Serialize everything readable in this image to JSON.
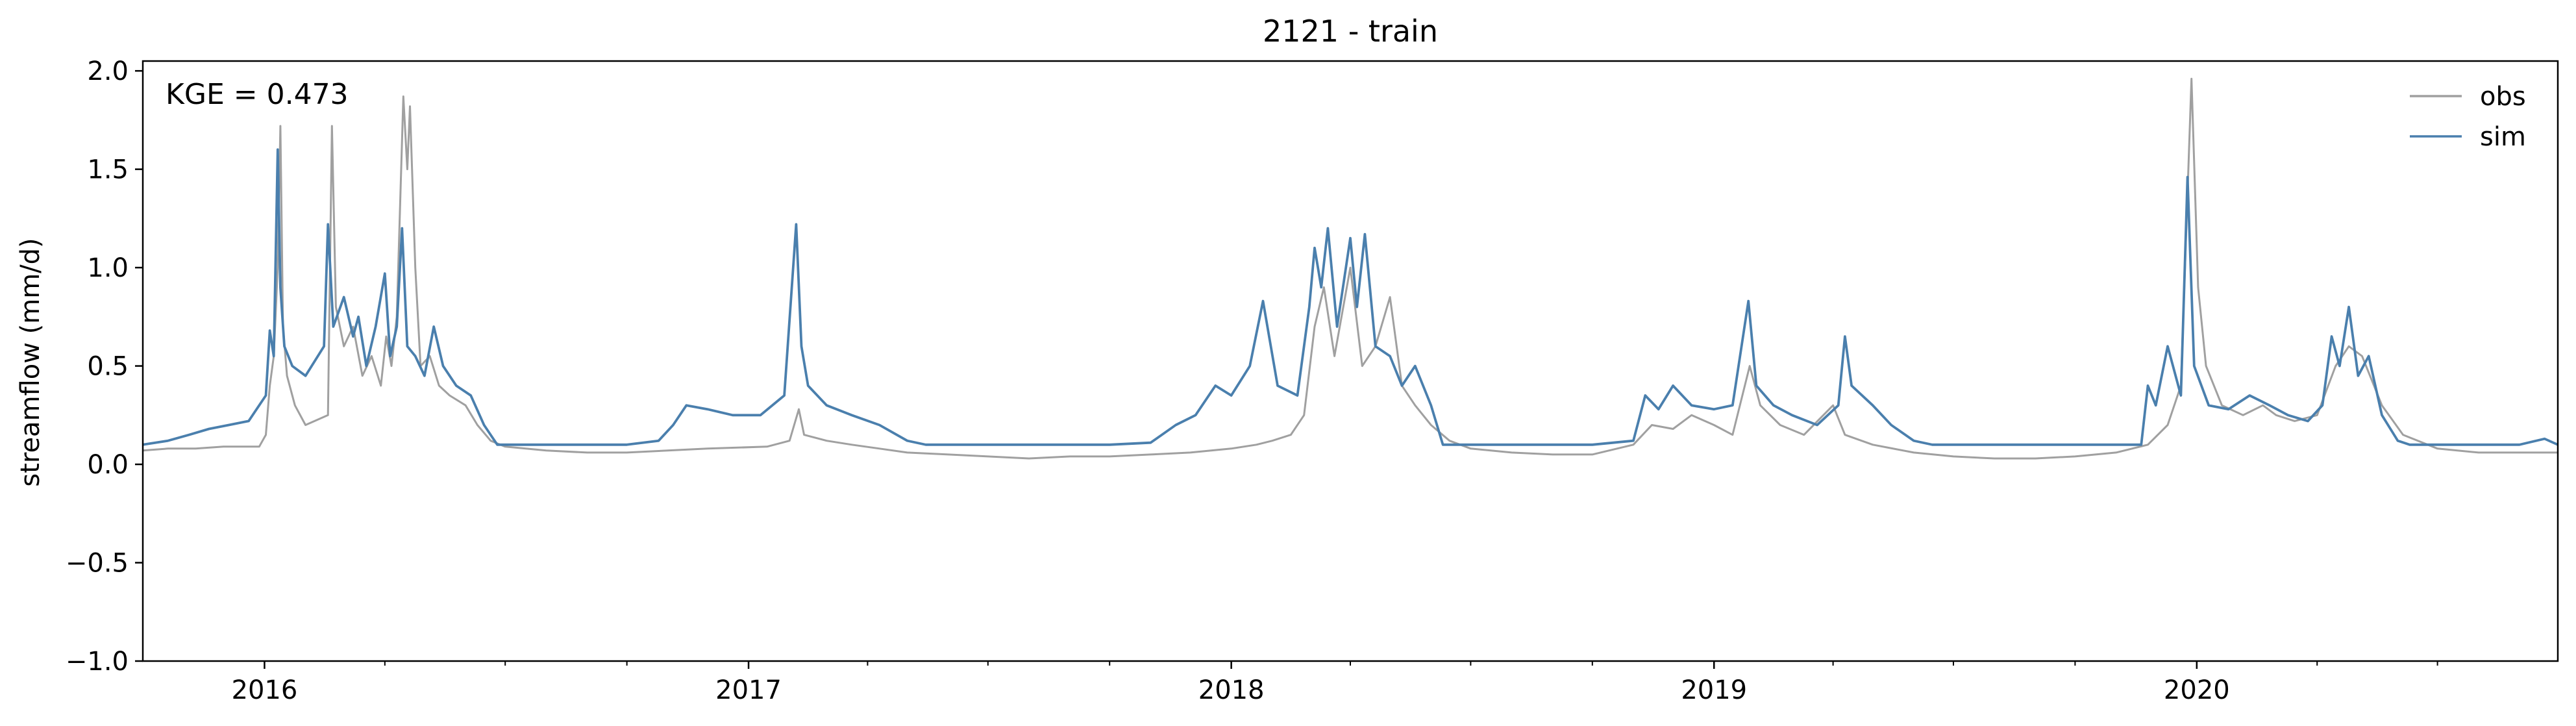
{
  "chart_data": {
    "type": "line",
    "title": "2121 - train",
    "ylabel": "streamflow (mm/d)",
    "xlabel": "",
    "annotation": "KGE = 0.473",
    "xlim": [
      "2015-10-01",
      "2020-09-30"
    ],
    "ylim": [
      -1.0,
      2.05
    ],
    "grid": false,
    "legend_position": "top-right",
    "x_ticks": [
      {
        "date": "2016-01-01",
        "label": "2016"
      },
      {
        "date": "2017-01-01",
        "label": "2017"
      },
      {
        "date": "2018-01-01",
        "label": "2018"
      },
      {
        "date": "2019-01-01",
        "label": "2019"
      },
      {
        "date": "2020-01-01",
        "label": "2020"
      }
    ],
    "minor_x_ticks": [
      "2016-04-01",
      "2016-07-01",
      "2016-10-01",
      "2017-04-01",
      "2017-07-01",
      "2017-10-01",
      "2018-04-01",
      "2018-07-01",
      "2018-10-01",
      "2019-04-01",
      "2019-07-01",
      "2019-10-01",
      "2020-04-01",
      "2020-07-01"
    ],
    "y_ticks": [
      {
        "value": -1.0,
        "label": "−1.0"
      },
      {
        "value": -0.5,
        "label": "−0.5"
      },
      {
        "value": 0.0,
        "label": "0.0"
      },
      {
        "value": 0.5,
        "label": "0.5"
      },
      {
        "value": 1.0,
        "label": "1.0"
      },
      {
        "value": 1.5,
        "label": "1.5"
      },
      {
        "value": 2.0,
        "label": "2.0"
      }
    ],
    "series": [
      {
        "name": "obs",
        "color": "#a0a0a0",
        "points": [
          [
            "2015-10-01",
            0.07
          ],
          [
            "2015-10-20",
            0.08
          ],
          [
            "2015-11-10",
            0.08
          ],
          [
            "2015-12-01",
            0.09
          ],
          [
            "2015-12-28",
            0.09
          ],
          [
            "2016-01-02",
            0.15
          ],
          [
            "2016-01-05",
            0.4
          ],
          [
            "2016-01-08",
            0.55
          ],
          [
            "2016-01-11",
            1.0
          ],
          [
            "2016-01-13",
            1.72
          ],
          [
            "2016-01-15",
            0.7
          ],
          [
            "2016-01-18",
            0.45
          ],
          [
            "2016-01-24",
            0.3
          ],
          [
            "2016-02-01",
            0.2
          ],
          [
            "2016-02-18",
            0.25
          ],
          [
            "2016-02-21",
            1.72
          ],
          [
            "2016-02-24",
            0.8
          ],
          [
            "2016-03-01",
            0.6
          ],
          [
            "2016-03-08",
            0.7
          ],
          [
            "2016-03-15",
            0.45
          ],
          [
            "2016-03-22",
            0.55
          ],
          [
            "2016-03-29",
            0.4
          ],
          [
            "2016-04-02",
            0.65
          ],
          [
            "2016-04-06",
            0.5
          ],
          [
            "2016-04-10",
            0.75
          ],
          [
            "2016-04-15",
            1.87
          ],
          [
            "2016-04-18",
            1.5
          ],
          [
            "2016-04-20",
            1.82
          ],
          [
            "2016-04-24",
            1.0
          ],
          [
            "2016-04-28",
            0.5
          ],
          [
            "2016-05-05",
            0.55
          ],
          [
            "2016-05-12",
            0.4
          ],
          [
            "2016-05-20",
            0.35
          ],
          [
            "2016-06-01",
            0.3
          ],
          [
            "2016-06-10",
            0.2
          ],
          [
            "2016-06-20",
            0.12
          ],
          [
            "2016-07-01",
            0.09
          ],
          [
            "2016-08-01",
            0.07
          ],
          [
            "2016-09-01",
            0.06
          ],
          [
            "2016-10-01",
            0.06
          ],
          [
            "2016-11-01",
            0.07
          ],
          [
            "2016-12-01",
            0.08
          ],
          [
            "2017-01-15",
            0.09
          ],
          [
            "2017-02-01",
            0.12
          ],
          [
            "2017-02-08",
            0.28
          ],
          [
            "2017-02-12",
            0.15
          ],
          [
            "2017-03-01",
            0.12
          ],
          [
            "2017-03-20",
            0.1
          ],
          [
            "2017-04-10",
            0.08
          ],
          [
            "2017-05-01",
            0.06
          ],
          [
            "2017-06-01",
            0.05
          ],
          [
            "2017-07-01",
            0.04
          ],
          [
            "2017-08-01",
            0.03
          ],
          [
            "2017-09-01",
            0.04
          ],
          [
            "2017-10-01",
            0.04
          ],
          [
            "2017-11-01",
            0.05
          ],
          [
            "2017-12-01",
            0.06
          ],
          [
            "2018-01-01",
            0.08
          ],
          [
            "2018-01-20",
            0.1
          ],
          [
            "2018-02-01",
            0.12
          ],
          [
            "2018-02-15",
            0.15
          ],
          [
            "2018-02-25",
            0.25
          ],
          [
            "2018-03-05",
            0.7
          ],
          [
            "2018-03-12",
            0.9
          ],
          [
            "2018-03-20",
            0.55
          ],
          [
            "2018-04-01",
            1.0
          ],
          [
            "2018-04-10",
            0.5
          ],
          [
            "2018-04-20",
            0.6
          ],
          [
            "2018-05-01",
            0.85
          ],
          [
            "2018-05-10",
            0.4
          ],
          [
            "2018-05-20",
            0.3
          ],
          [
            "2018-06-01",
            0.2
          ],
          [
            "2018-06-15",
            0.12
          ],
          [
            "2018-07-01",
            0.08
          ],
          [
            "2018-08-01",
            0.06
          ],
          [
            "2018-09-01",
            0.05
          ],
          [
            "2018-10-01",
            0.05
          ],
          [
            "2018-11-01",
            0.1
          ],
          [
            "2018-11-15",
            0.2
          ],
          [
            "2018-12-01",
            0.18
          ],
          [
            "2018-12-15",
            0.25
          ],
          [
            "2019-01-01",
            0.2
          ],
          [
            "2019-01-15",
            0.15
          ],
          [
            "2019-01-28",
            0.5
          ],
          [
            "2019-02-05",
            0.3
          ],
          [
            "2019-02-20",
            0.2
          ],
          [
            "2019-03-10",
            0.15
          ],
          [
            "2019-04-01",
            0.3
          ],
          [
            "2019-04-10",
            0.15
          ],
          [
            "2019-05-01",
            0.1
          ],
          [
            "2019-06-01",
            0.06
          ],
          [
            "2019-07-01",
            0.04
          ],
          [
            "2019-08-01",
            0.03
          ],
          [
            "2019-09-01",
            0.03
          ],
          [
            "2019-10-01",
            0.04
          ],
          [
            "2019-11-01",
            0.06
          ],
          [
            "2019-11-25",
            0.1
          ],
          [
            "2019-12-10",
            0.2
          ],
          [
            "2019-12-20",
            0.4
          ],
          [
            "2019-12-28",
            1.96
          ],
          [
            "2020-01-02",
            0.9
          ],
          [
            "2020-01-08",
            0.5
          ],
          [
            "2020-01-20",
            0.3
          ],
          [
            "2020-02-05",
            0.25
          ],
          [
            "2020-02-20",
            0.3
          ],
          [
            "2020-03-01",
            0.25
          ],
          [
            "2020-03-15",
            0.22
          ],
          [
            "2020-04-01",
            0.25
          ],
          [
            "2020-04-15",
            0.5
          ],
          [
            "2020-04-25",
            0.6
          ],
          [
            "2020-05-05",
            0.55
          ],
          [
            "2020-05-20",
            0.3
          ],
          [
            "2020-06-05",
            0.15
          ],
          [
            "2020-07-01",
            0.08
          ],
          [
            "2020-08-01",
            0.06
          ],
          [
            "2020-09-30",
            0.06
          ]
        ]
      },
      {
        "name": "sim",
        "color": "#4a7fad",
        "points": [
          [
            "2015-10-01",
            0.1
          ],
          [
            "2015-10-20",
            0.12
          ],
          [
            "2015-11-05",
            0.15
          ],
          [
            "2015-11-20",
            0.18
          ],
          [
            "2015-12-05",
            0.2
          ],
          [
            "2015-12-20",
            0.22
          ],
          [
            "2016-01-02",
            0.35
          ],
          [
            "2016-01-05",
            0.68
          ],
          [
            "2016-01-08",
            0.55
          ],
          [
            "2016-01-11",
            1.6
          ],
          [
            "2016-01-13",
            0.9
          ],
          [
            "2016-01-16",
            0.6
          ],
          [
            "2016-01-22",
            0.5
          ],
          [
            "2016-02-01",
            0.45
          ],
          [
            "2016-02-15",
            0.6
          ],
          [
            "2016-02-18",
            1.22
          ],
          [
            "2016-02-22",
            0.7
          ],
          [
            "2016-03-01",
            0.85
          ],
          [
            "2016-03-08",
            0.65
          ],
          [
            "2016-03-12",
            0.75
          ],
          [
            "2016-03-18",
            0.5
          ],
          [
            "2016-03-25",
            0.7
          ],
          [
            "2016-04-01",
            0.97
          ],
          [
            "2016-04-05",
            0.55
          ],
          [
            "2016-04-10",
            0.7
          ],
          [
            "2016-04-14",
            1.2
          ],
          [
            "2016-04-18",
            0.6
          ],
          [
            "2016-04-24",
            0.55
          ],
          [
            "2016-05-01",
            0.45
          ],
          [
            "2016-05-08",
            0.7
          ],
          [
            "2016-05-15",
            0.5
          ],
          [
            "2016-05-25",
            0.4
          ],
          [
            "2016-06-05",
            0.35
          ],
          [
            "2016-06-15",
            0.2
          ],
          [
            "2016-06-25",
            0.1
          ],
          [
            "2016-07-01",
            0.1
          ],
          [
            "2016-08-01",
            0.1
          ],
          [
            "2016-09-01",
            0.1
          ],
          [
            "2016-10-01",
            0.1
          ],
          [
            "2016-10-25",
            0.12
          ],
          [
            "2016-11-05",
            0.2
          ],
          [
            "2016-11-15",
            0.3
          ],
          [
            "2016-12-01",
            0.28
          ],
          [
            "2016-12-20",
            0.25
          ],
          [
            "2017-01-10",
            0.25
          ],
          [
            "2017-01-28",
            0.35
          ],
          [
            "2017-02-06",
            1.22
          ],
          [
            "2017-02-10",
            0.6
          ],
          [
            "2017-02-15",
            0.4
          ],
          [
            "2017-03-01",
            0.3
          ],
          [
            "2017-03-20",
            0.25
          ],
          [
            "2017-04-10",
            0.2
          ],
          [
            "2017-05-01",
            0.12
          ],
          [
            "2017-05-15",
            0.1
          ],
          [
            "2017-06-01",
            0.1
          ],
          [
            "2017-07-01",
            0.1
          ],
          [
            "2017-08-01",
            0.1
          ],
          [
            "2017-09-01",
            0.1
          ],
          [
            "2017-10-01",
            0.1
          ],
          [
            "2017-11-01",
            0.11
          ],
          [
            "2017-11-20",
            0.2
          ],
          [
            "2017-12-05",
            0.25
          ],
          [
            "2017-12-20",
            0.4
          ],
          [
            "2018-01-01",
            0.35
          ],
          [
            "2018-01-15",
            0.5
          ],
          [
            "2018-01-25",
            0.83
          ],
          [
            "2018-02-05",
            0.4
          ],
          [
            "2018-02-20",
            0.35
          ],
          [
            "2018-03-01",
            0.8
          ],
          [
            "2018-03-05",
            1.1
          ],
          [
            "2018-03-10",
            0.9
          ],
          [
            "2018-03-15",
            1.2
          ],
          [
            "2018-03-22",
            0.7
          ],
          [
            "2018-04-01",
            1.15
          ],
          [
            "2018-04-06",
            0.8
          ],
          [
            "2018-04-12",
            1.17
          ],
          [
            "2018-04-20",
            0.6
          ],
          [
            "2018-05-01",
            0.55
          ],
          [
            "2018-05-10",
            0.4
          ],
          [
            "2018-05-20",
            0.5
          ],
          [
            "2018-06-01",
            0.3
          ],
          [
            "2018-06-10",
            0.1
          ],
          [
            "2018-07-01",
            0.1
          ],
          [
            "2018-08-01",
            0.1
          ],
          [
            "2018-09-01",
            0.1
          ],
          [
            "2018-10-01",
            0.1
          ],
          [
            "2018-11-01",
            0.12
          ],
          [
            "2018-11-10",
            0.35
          ],
          [
            "2018-11-20",
            0.28
          ],
          [
            "2018-12-01",
            0.4
          ],
          [
            "2018-12-15",
            0.3
          ],
          [
            "2019-01-01",
            0.28
          ],
          [
            "2019-01-15",
            0.3
          ],
          [
            "2019-01-27",
            0.83
          ],
          [
            "2019-02-02",
            0.4
          ],
          [
            "2019-02-15",
            0.3
          ],
          [
            "2019-03-01",
            0.25
          ],
          [
            "2019-03-20",
            0.2
          ],
          [
            "2019-04-05",
            0.3
          ],
          [
            "2019-04-10",
            0.65
          ],
          [
            "2019-04-15",
            0.4
          ],
          [
            "2019-05-01",
            0.3
          ],
          [
            "2019-05-15",
            0.2
          ],
          [
            "2019-06-01",
            0.12
          ],
          [
            "2019-06-15",
            0.1
          ],
          [
            "2019-07-01",
            0.1
          ],
          [
            "2019-08-01",
            0.1
          ],
          [
            "2019-09-01",
            0.1
          ],
          [
            "2019-10-01",
            0.1
          ],
          [
            "2019-11-01",
            0.1
          ],
          [
            "2019-11-20",
            0.1
          ],
          [
            "2019-11-25",
            0.4
          ],
          [
            "2019-12-01",
            0.3
          ],
          [
            "2019-12-10",
            0.6
          ],
          [
            "2019-12-20",
            0.35
          ],
          [
            "2019-12-25",
            1.46
          ],
          [
            "2019-12-30",
            0.5
          ],
          [
            "2020-01-10",
            0.3
          ],
          [
            "2020-01-25",
            0.28
          ],
          [
            "2020-02-10",
            0.35
          ],
          [
            "2020-02-25",
            0.3
          ],
          [
            "2020-03-10",
            0.25
          ],
          [
            "2020-03-25",
            0.22
          ],
          [
            "2020-04-05",
            0.3
          ],
          [
            "2020-04-12",
            0.65
          ],
          [
            "2020-04-18",
            0.5
          ],
          [
            "2020-04-25",
            0.8
          ],
          [
            "2020-05-02",
            0.45
          ],
          [
            "2020-05-10",
            0.55
          ],
          [
            "2020-05-20",
            0.25
          ],
          [
            "2020-06-01",
            0.12
          ],
          [
            "2020-06-10",
            0.1
          ],
          [
            "2020-07-01",
            0.1
          ],
          [
            "2020-08-01",
            0.1
          ],
          [
            "2020-09-01",
            0.1
          ],
          [
            "2020-09-20",
            0.13
          ],
          [
            "2020-09-30",
            0.1
          ]
        ]
      }
    ]
  }
}
